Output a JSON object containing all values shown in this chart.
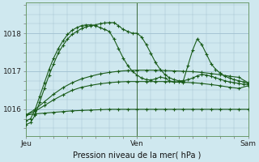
{
  "xlabel": "Pression niveau de la mer( hPa )",
  "x_ticks": [
    0,
    48,
    96
  ],
  "x_tick_labels": [
    "Jeu",
    "Ven",
    "Sam"
  ],
  "ylim": [
    1015.3,
    1018.8
  ],
  "yticks": [
    1016,
    1017,
    1018
  ],
  "background_color": "#cfe8ef",
  "grid_color": "#9fbfcf",
  "line_color": "#1a5c1a",
  "figsize": [
    3.2,
    2.0
  ],
  "dpi": 100,
  "lines": [
    {
      "x": [
        0,
        4,
        8,
        12,
        16,
        20,
        24,
        28,
        32,
        36,
        40,
        44,
        48,
        52,
        56,
        60,
        64,
        68,
        72,
        76,
        80,
        84,
        88,
        92,
        96
      ],
      "y": [
        1015.85,
        1015.88,
        1015.9,
        1015.92,
        1015.94,
        1015.96,
        1015.97,
        1015.98,
        1015.99,
        1016.0,
        1016.0,
        1016.0,
        1016.0,
        1016.0,
        1016.0,
        1016.0,
        1016.0,
        1016.0,
        1016.0,
        1016.0,
        1016.0,
        1016.0,
        1016.0,
        1016.0,
        1016.0
      ]
    },
    {
      "x": [
        0,
        4,
        8,
        12,
        16,
        20,
        24,
        28,
        32,
        36,
        40,
        44,
        48,
        52,
        56,
        60,
        64,
        68,
        72,
        76,
        80,
        84,
        88,
        92,
        96
      ],
      "y": [
        1015.85,
        1015.95,
        1016.1,
        1016.25,
        1016.38,
        1016.5,
        1016.58,
        1016.63,
        1016.67,
        1016.7,
        1016.72,
        1016.73,
        1016.73,
        1016.73,
        1016.73,
        1016.73,
        1016.72,
        1016.71,
        1016.7,
        1016.68,
        1016.65,
        1016.62,
        1016.58,
        1016.55,
        1016.62
      ]
    },
    {
      "x": [
        0,
        4,
        8,
        12,
        16,
        20,
        24,
        28,
        32,
        36,
        40,
        44,
        48,
        52,
        56,
        60,
        64,
        68,
        72,
        76,
        80,
        84,
        88,
        92,
        96
      ],
      "y": [
        1015.85,
        1016.0,
        1016.2,
        1016.4,
        1016.57,
        1016.7,
        1016.8,
        1016.87,
        1016.93,
        1016.97,
        1017.0,
        1017.02,
        1017.03,
        1017.03,
        1017.03,
        1017.02,
        1017.01,
        1017.0,
        1016.99,
        1016.97,
        1016.94,
        1016.91,
        1016.87,
        1016.84,
        1016.7
      ]
    },
    {
      "x": [
        0,
        2,
        4,
        6,
        8,
        10,
        12,
        14,
        16,
        18,
        20,
        22,
        24,
        26,
        28,
        30,
        32,
        34,
        36,
        38,
        40,
        42,
        44,
        46,
        48,
        50,
        52,
        54,
        56,
        58,
        60,
        62,
        64,
        66,
        68,
        70,
        72,
        74,
        76,
        78,
        80,
        82,
        84,
        86,
        88,
        90,
        92,
        94,
        96
      ],
      "y": [
        1015.7,
        1015.75,
        1016.0,
        1016.35,
        1016.7,
        1017.05,
        1017.35,
        1017.6,
        1017.8,
        1017.97,
        1018.08,
        1018.15,
        1018.2,
        1018.22,
        1018.22,
        1018.2,
        1018.15,
        1018.1,
        1018.05,
        1017.85,
        1017.6,
        1017.35,
        1017.15,
        1017.0,
        1016.9,
        1016.82,
        1016.78,
        1016.77,
        1016.8,
        1016.85,
        1016.82,
        1016.75,
        1016.72,
        1016.72,
        1016.75,
        1017.15,
        1017.55,
        1017.85,
        1017.7,
        1017.45,
        1017.2,
        1017.05,
        1016.95,
        1016.87,
        1016.82,
        1016.78,
        1016.75,
        1016.72,
        1016.68
      ]
    },
    {
      "x": [
        0,
        2,
        4,
        6,
        8,
        10,
        12,
        14,
        16,
        18,
        20,
        22,
        24,
        26,
        28,
        30,
        32,
        34,
        36,
        38,
        40,
        42,
        44,
        46,
        48,
        50,
        52,
        54,
        56,
        58,
        60,
        62,
        64,
        66,
        68,
        70,
        72,
        74,
        76,
        78,
        80,
        82,
        84,
        86,
        88,
        90,
        92,
        94,
        96
      ],
      "y": [
        1015.6,
        1015.65,
        1015.85,
        1016.2,
        1016.55,
        1016.9,
        1017.2,
        1017.48,
        1017.68,
        1017.85,
        1017.97,
        1018.05,
        1018.12,
        1018.17,
        1018.2,
        1018.22,
        1018.25,
        1018.27,
        1018.28,
        1018.28,
        1018.2,
        1018.1,
        1018.05,
        1018.0,
        1018.0,
        1017.9,
        1017.7,
        1017.47,
        1017.23,
        1017.05,
        1016.92,
        1016.83,
        1016.78,
        1016.75,
        1016.75,
        1016.78,
        1016.82,
        1016.88,
        1016.92,
        1016.9,
        1016.87,
        1016.83,
        1016.79,
        1016.75,
        1016.72,
        1016.7,
        1016.68,
        1016.66,
        1016.65
      ]
    }
  ]
}
